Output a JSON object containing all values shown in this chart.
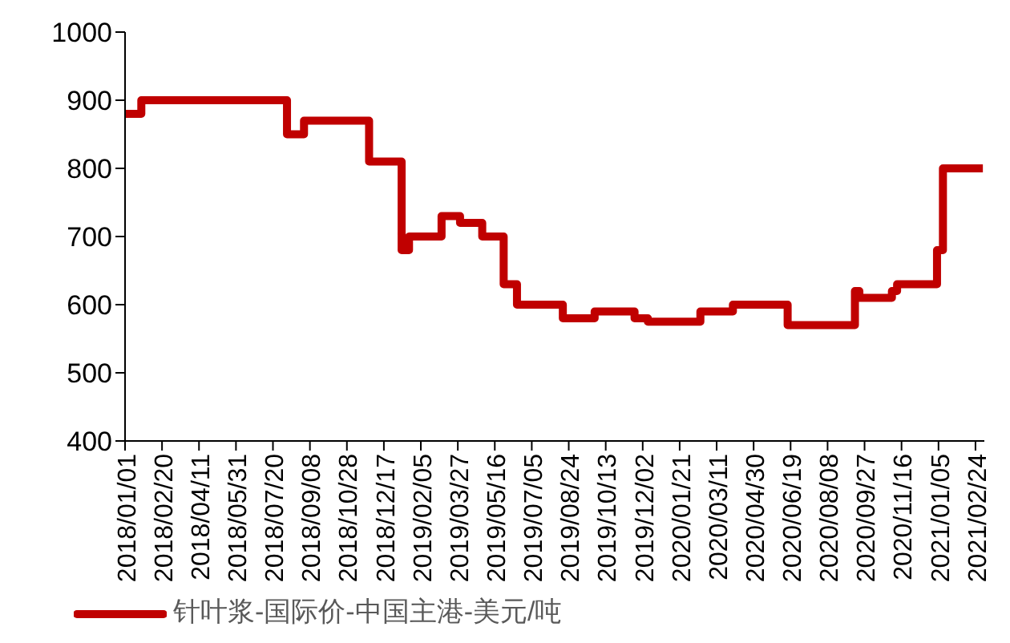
{
  "chart_data": {
    "type": "step",
    "x": [
      "2018-01-01",
      "2018-01-23",
      "2018-08-08",
      "2018-08-31",
      "2018-11-27",
      "2019-01-10",
      "2019-01-20",
      "2019-03-05",
      "2019-03-30",
      "2019-04-29",
      "2019-05-28",
      "2019-06-15",
      "2019-08-16",
      "2019-09-28",
      "2019-11-21",
      "2019-12-09",
      "2020-02-18",
      "2020-04-02",
      "2020-06-15",
      "2020-09-14",
      "2020-09-20",
      "2020-11-03",
      "2020-11-10",
      "2021-01-03",
      "2021-01-11",
      "2021-03-06"
    ],
    "series": [
      {
        "name": "针叶浆-国际价-中国主港-美元/吨",
        "color": "#c00000",
        "values": [
          880,
          900,
          850,
          870,
          810,
          680,
          700,
          730,
          720,
          700,
          630,
          600,
          580,
          590,
          580,
          575,
          590,
          600,
          570,
          620,
          610,
          620,
          630,
          680,
          800,
          800
        ]
      }
    ],
    "xlim": [
      "2018-01-01",
      "2021-03-08"
    ],
    "xticks": [
      {
        "value": "2018-01-01",
        "label": "2018/01/01"
      },
      {
        "value": "2018-02-20",
        "label": "2018/02/20"
      },
      {
        "value": "2018-04-11",
        "label": "2018/04/11"
      },
      {
        "value": "2018-05-31",
        "label": "2018/05/31"
      },
      {
        "value": "2018-07-20",
        "label": "2018/07/20"
      },
      {
        "value": "2018-09-08",
        "label": "2018/09/08"
      },
      {
        "value": "2018-10-28",
        "label": "2018/10/28"
      },
      {
        "value": "2018-12-17",
        "label": "2018/12/17"
      },
      {
        "value": "2019-02-05",
        "label": "2019/02/05"
      },
      {
        "value": "2019-03-27",
        "label": "2019/03/27"
      },
      {
        "value": "2019-05-16",
        "label": "2019/05/16"
      },
      {
        "value": "2019-07-05",
        "label": "2019/07/05"
      },
      {
        "value": "2019-08-24",
        "label": "2019/08/24"
      },
      {
        "value": "2019-10-13",
        "label": "2019/10/13"
      },
      {
        "value": "2019-12-02",
        "label": "2019/12/02"
      },
      {
        "value": "2020-01-21",
        "label": "2020/01/21"
      },
      {
        "value": "2020-03-11",
        "label": "2020/03/11"
      },
      {
        "value": "2020-04-30",
        "label": "2020/04/30"
      },
      {
        "value": "2020-06-19",
        "label": "2020/06/19"
      },
      {
        "value": "2020-08-08",
        "label": "2020/08/08"
      },
      {
        "value": "2020-09-27",
        "label": "2020/09/27"
      },
      {
        "value": "2020-11-16",
        "label": "2020/11/16"
      },
      {
        "value": "2021-01-05",
        "label": "2021/01/05"
      },
      {
        "value": "2021-02-24",
        "label": "2021/02/24"
      }
    ],
    "ylim": [
      400,
      1000
    ],
    "yticks": [
      400,
      500,
      600,
      700,
      800,
      900,
      1000
    ],
    "grid": false,
    "legend": "bottom",
    "marker": "none",
    "line_style": "solid"
  }
}
